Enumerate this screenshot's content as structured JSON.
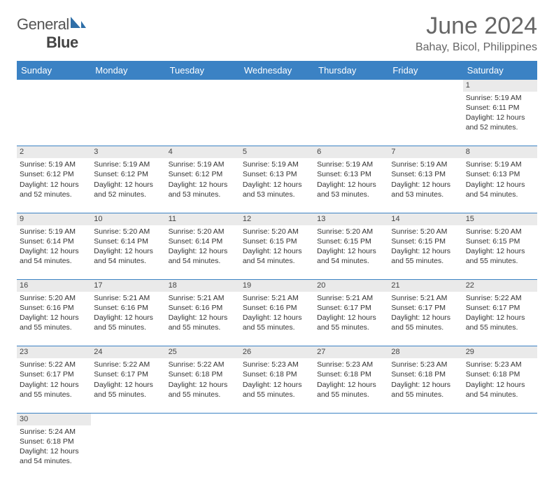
{
  "brand": {
    "part1": "General",
    "part2": "Blue",
    "logo_color": "#2f6fa8"
  },
  "title": "June 2024",
  "location": "Bahay, Bicol, Philippines",
  "colors": {
    "header_bg": "#3b82c4",
    "header_fg": "#ffffff",
    "daynum_bg": "#eaeaea",
    "rule": "#3b82c4"
  },
  "weekdays": [
    "Sunday",
    "Monday",
    "Tuesday",
    "Wednesday",
    "Thursday",
    "Friday",
    "Saturday"
  ],
  "weeks": [
    {
      "nums": [
        "",
        "",
        "",
        "",
        "",
        "",
        "1"
      ],
      "cells": [
        null,
        null,
        null,
        null,
        null,
        null,
        {
          "sunrise": "Sunrise: 5:19 AM",
          "sunset": "Sunset: 6:11 PM",
          "day1": "Daylight: 12 hours",
          "day2": "and 52 minutes."
        }
      ]
    },
    {
      "nums": [
        "2",
        "3",
        "4",
        "5",
        "6",
        "7",
        "8"
      ],
      "cells": [
        {
          "sunrise": "Sunrise: 5:19 AM",
          "sunset": "Sunset: 6:12 PM",
          "day1": "Daylight: 12 hours",
          "day2": "and 52 minutes."
        },
        {
          "sunrise": "Sunrise: 5:19 AM",
          "sunset": "Sunset: 6:12 PM",
          "day1": "Daylight: 12 hours",
          "day2": "and 52 minutes."
        },
        {
          "sunrise": "Sunrise: 5:19 AM",
          "sunset": "Sunset: 6:12 PM",
          "day1": "Daylight: 12 hours",
          "day2": "and 53 minutes."
        },
        {
          "sunrise": "Sunrise: 5:19 AM",
          "sunset": "Sunset: 6:13 PM",
          "day1": "Daylight: 12 hours",
          "day2": "and 53 minutes."
        },
        {
          "sunrise": "Sunrise: 5:19 AM",
          "sunset": "Sunset: 6:13 PM",
          "day1": "Daylight: 12 hours",
          "day2": "and 53 minutes."
        },
        {
          "sunrise": "Sunrise: 5:19 AM",
          "sunset": "Sunset: 6:13 PM",
          "day1": "Daylight: 12 hours",
          "day2": "and 53 minutes."
        },
        {
          "sunrise": "Sunrise: 5:19 AM",
          "sunset": "Sunset: 6:13 PM",
          "day1": "Daylight: 12 hours",
          "day2": "and 54 minutes."
        }
      ]
    },
    {
      "nums": [
        "9",
        "10",
        "11",
        "12",
        "13",
        "14",
        "15"
      ],
      "cells": [
        {
          "sunrise": "Sunrise: 5:19 AM",
          "sunset": "Sunset: 6:14 PM",
          "day1": "Daylight: 12 hours",
          "day2": "and 54 minutes."
        },
        {
          "sunrise": "Sunrise: 5:20 AM",
          "sunset": "Sunset: 6:14 PM",
          "day1": "Daylight: 12 hours",
          "day2": "and 54 minutes."
        },
        {
          "sunrise": "Sunrise: 5:20 AM",
          "sunset": "Sunset: 6:14 PM",
          "day1": "Daylight: 12 hours",
          "day2": "and 54 minutes."
        },
        {
          "sunrise": "Sunrise: 5:20 AM",
          "sunset": "Sunset: 6:15 PM",
          "day1": "Daylight: 12 hours",
          "day2": "and 54 minutes."
        },
        {
          "sunrise": "Sunrise: 5:20 AM",
          "sunset": "Sunset: 6:15 PM",
          "day1": "Daylight: 12 hours",
          "day2": "and 54 minutes."
        },
        {
          "sunrise": "Sunrise: 5:20 AM",
          "sunset": "Sunset: 6:15 PM",
          "day1": "Daylight: 12 hours",
          "day2": "and 55 minutes."
        },
        {
          "sunrise": "Sunrise: 5:20 AM",
          "sunset": "Sunset: 6:15 PM",
          "day1": "Daylight: 12 hours",
          "day2": "and 55 minutes."
        }
      ]
    },
    {
      "nums": [
        "16",
        "17",
        "18",
        "19",
        "20",
        "21",
        "22"
      ],
      "cells": [
        {
          "sunrise": "Sunrise: 5:20 AM",
          "sunset": "Sunset: 6:16 PM",
          "day1": "Daylight: 12 hours",
          "day2": "and 55 minutes."
        },
        {
          "sunrise": "Sunrise: 5:21 AM",
          "sunset": "Sunset: 6:16 PM",
          "day1": "Daylight: 12 hours",
          "day2": "and 55 minutes."
        },
        {
          "sunrise": "Sunrise: 5:21 AM",
          "sunset": "Sunset: 6:16 PM",
          "day1": "Daylight: 12 hours",
          "day2": "and 55 minutes."
        },
        {
          "sunrise": "Sunrise: 5:21 AM",
          "sunset": "Sunset: 6:16 PM",
          "day1": "Daylight: 12 hours",
          "day2": "and 55 minutes."
        },
        {
          "sunrise": "Sunrise: 5:21 AM",
          "sunset": "Sunset: 6:17 PM",
          "day1": "Daylight: 12 hours",
          "day2": "and 55 minutes."
        },
        {
          "sunrise": "Sunrise: 5:21 AM",
          "sunset": "Sunset: 6:17 PM",
          "day1": "Daylight: 12 hours",
          "day2": "and 55 minutes."
        },
        {
          "sunrise": "Sunrise: 5:22 AM",
          "sunset": "Sunset: 6:17 PM",
          "day1": "Daylight: 12 hours",
          "day2": "and 55 minutes."
        }
      ]
    },
    {
      "nums": [
        "23",
        "24",
        "25",
        "26",
        "27",
        "28",
        "29"
      ],
      "cells": [
        {
          "sunrise": "Sunrise: 5:22 AM",
          "sunset": "Sunset: 6:17 PM",
          "day1": "Daylight: 12 hours",
          "day2": "and 55 minutes."
        },
        {
          "sunrise": "Sunrise: 5:22 AM",
          "sunset": "Sunset: 6:17 PM",
          "day1": "Daylight: 12 hours",
          "day2": "and 55 minutes."
        },
        {
          "sunrise": "Sunrise: 5:22 AM",
          "sunset": "Sunset: 6:18 PM",
          "day1": "Daylight: 12 hours",
          "day2": "and 55 minutes."
        },
        {
          "sunrise": "Sunrise: 5:23 AM",
          "sunset": "Sunset: 6:18 PM",
          "day1": "Daylight: 12 hours",
          "day2": "and 55 minutes."
        },
        {
          "sunrise": "Sunrise: 5:23 AM",
          "sunset": "Sunset: 6:18 PM",
          "day1": "Daylight: 12 hours",
          "day2": "and 55 minutes."
        },
        {
          "sunrise": "Sunrise: 5:23 AM",
          "sunset": "Sunset: 6:18 PM",
          "day1": "Daylight: 12 hours",
          "day2": "and 55 minutes."
        },
        {
          "sunrise": "Sunrise: 5:23 AM",
          "sunset": "Sunset: 6:18 PM",
          "day1": "Daylight: 12 hours",
          "day2": "and 54 minutes."
        }
      ]
    },
    {
      "nums": [
        "30",
        "",
        "",
        "",
        "",
        "",
        ""
      ],
      "cells": [
        {
          "sunrise": "Sunrise: 5:24 AM",
          "sunset": "Sunset: 6:18 PM",
          "day1": "Daylight: 12 hours",
          "day2": "and 54 minutes."
        },
        null,
        null,
        null,
        null,
        null,
        null
      ]
    }
  ]
}
